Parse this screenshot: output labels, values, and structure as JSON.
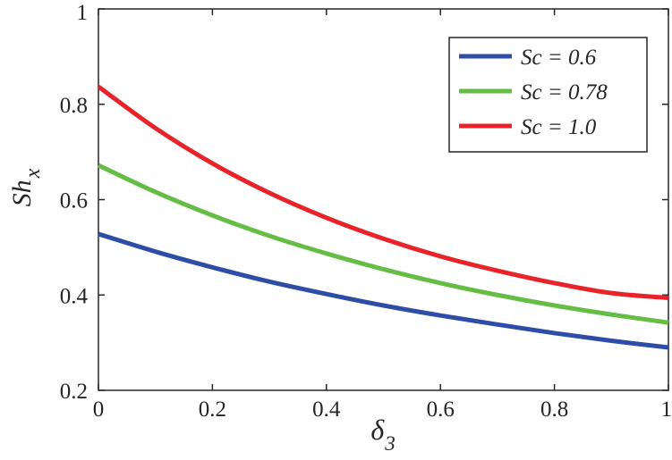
{
  "chart_data": {
    "type": "line",
    "xlabel": {
      "main": "δ",
      "sub": "3"
    },
    "ylabel": {
      "main": "Sh",
      "sub": "x"
    },
    "xlim": [
      0,
      1
    ],
    "ylim": [
      0.2,
      1
    ],
    "xticks": [
      0,
      0.2,
      0.4,
      0.6,
      0.8,
      1
    ],
    "yticks": [
      0.2,
      0.4,
      0.6,
      0.8,
      1
    ],
    "xtick_labels": [
      "0",
      "0.2",
      "0.4",
      "0.6",
      "0.8",
      "1"
    ],
    "ytick_labels": [
      "0.2",
      "0.4",
      "0.6",
      "0.8",
      "1"
    ],
    "grid": false,
    "legend_position": "top-right",
    "x": [
      0,
      0.1,
      0.2,
      0.3,
      0.4,
      0.5,
      0.6,
      0.7,
      0.8,
      0.9,
      1.0
    ],
    "series": [
      {
        "name": "Sc = 0.6",
        "color": "#2E4DA7",
        "values": [
          0.528,
          0.491,
          0.458,
          0.428,
          0.402,
          0.378,
          0.357,
          0.338,
          0.32,
          0.304,
          0.29
        ]
      },
      {
        "name": "Sc = 0.78",
        "color": "#66BD45",
        "values": [
          0.672,
          0.616,
          0.567,
          0.524,
          0.487,
          0.454,
          0.425,
          0.4,
          0.378,
          0.359,
          0.342
        ]
      },
      {
        "name": "Sc = 1.0",
        "color": "#E8242A",
        "values": [
          0.837,
          0.75,
          0.676,
          0.614,
          0.562,
          0.518,
          0.481,
          0.451,
          0.425,
          0.404,
          0.394
        ]
      }
    ]
  }
}
